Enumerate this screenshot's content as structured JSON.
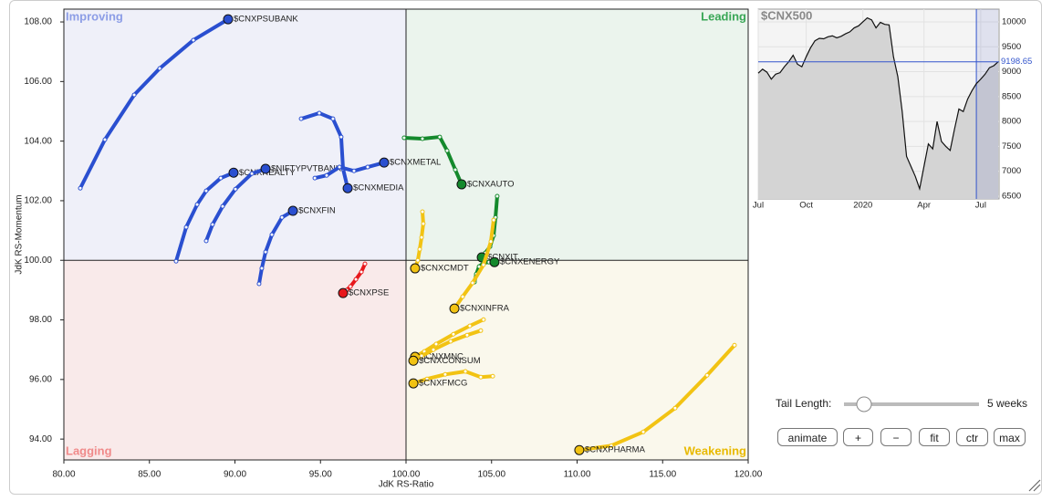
{
  "chart_data": [
    {
      "type": "scatter",
      "x_label": "JdK RS-Ratio",
      "y_label": "JdK RS-Momentum",
      "center": 100,
      "xlim": [
        80,
        120
      ],
      "ylim": [
        93.3,
        108.43
      ],
      "xticks": [
        {
          "value": 80,
          "label": "80.00"
        },
        {
          "value": 85,
          "label": "85.00"
        },
        {
          "value": 90,
          "label": "90.00"
        },
        {
          "value": 95,
          "label": "95.00"
        },
        {
          "value": 100,
          "label": "100.00"
        },
        {
          "value": 105,
          "label": "105.00"
        },
        {
          "value": 110,
          "label": "110.00"
        },
        {
          "value": 115,
          "label": "115.00"
        },
        {
          "value": 120,
          "label": "120.00"
        }
      ],
      "yticks": [
        {
          "value": 94,
          "label": "94.00"
        },
        {
          "value": 96,
          "label": "96.00"
        },
        {
          "value": 98,
          "label": "98.00"
        },
        {
          "value": 100,
          "label": "100.00"
        },
        {
          "value": 102,
          "label": "102.00"
        },
        {
          "value": 104,
          "label": "104.00"
        },
        {
          "value": 106,
          "label": "106.00"
        },
        {
          "value": 108,
          "label": "108.00"
        }
      ],
      "quadrants": [
        {
          "label": "Improving",
          "corner": "top-left",
          "color": "#8c9de6",
          "background": "#eff0f9"
        },
        {
          "label": "Leading",
          "corner": "top-right",
          "color": "#3aa757",
          "background": "#ebf4ed"
        },
        {
          "label": "Lagging",
          "corner": "bottom-left",
          "color": "#f08a8a",
          "background": "#f9eaea"
        },
        {
          "label": "Weakening",
          "corner": "bottom-right",
          "color": "#e8b900",
          "background": "#faf8ec"
        }
      ],
      "series": [
        {
          "name": "$CNXPSUBANK",
          "color": "#2a4fd0",
          "x": [
            80.96,
            82.4,
            84.11,
            85.6,
            87.57,
            89.6
          ],
          "y": [
            102.42,
            104.05,
            105.55,
            106.44,
            107.39,
            108.09
          ]
        },
        {
          "name": "$CNXREALTY",
          "color": "#2a4fd0",
          "x": [
            86.56,
            87.15,
            87.79,
            88.32,
            89.17,
            89.92
          ],
          "y": [
            99.97,
            101.11,
            101.87,
            102.33,
            102.76,
            102.94
          ]
        },
        {
          "name": "$NIFTYPVTBANK",
          "color": "#2a4fd0",
          "x": [
            88.32,
            88.69,
            89.28,
            90.03,
            90.99,
            91.79
          ],
          "y": [
            100.65,
            101.2,
            101.81,
            102.39,
            102.91,
            103.07
          ]
        },
        {
          "name": "$CNXFIN",
          "color": "#2a4fd0",
          "x": [
            91.41,
            91.57,
            91.79,
            92.16,
            92.75,
            93.39
          ],
          "y": [
            99.21,
            99.73,
            100.28,
            100.86,
            101.44,
            101.66
          ]
        },
        {
          "name": "$CNXMEDIA",
          "color": "#2a4fd0",
          "x": [
            93.87,
            94.93,
            95.73,
            96.21,
            96.32,
            96.59
          ],
          "y": [
            104.75,
            104.94,
            104.75,
            104.14,
            103.07,
            102.42
          ]
        },
        {
          "name": "$CNXMETAL",
          "color": "#2a4fd0",
          "x": [
            94.67,
            95.36,
            96.11,
            96.96,
            97.76,
            98.72
          ],
          "y": [
            102.76,
            102.85,
            103.13,
            103.0,
            103.13,
            103.28
          ]
        },
        {
          "name": "$CNXAUTO",
          "color": "#14892c",
          "x": [
            99.89,
            100.96,
            101.97,
            102.4,
            102.88,
            103.25
          ],
          "y": [
            104.11,
            104.08,
            104.14,
            103.68,
            103.04,
            102.55
          ]
        },
        {
          "name": "$CNXIT",
          "color": "#14892c",
          "x": [
            105.33,
            105.23,
            105.12,
            104.91,
            104.64,
            104.43
          ],
          "y": [
            102.15,
            101.44,
            100.83,
            100.46,
            100.25,
            100.1
          ]
        },
        {
          "name": "$CNXENERGY",
          "color": "#14892c",
          "x": [
            104.0,
            104.11,
            104.27,
            104.53,
            104.85,
            105.17
          ],
          "y": [
            99.27,
            99.54,
            99.79,
            99.91,
            99.94,
            99.94
          ]
        },
        {
          "name": "$CNXCMDT",
          "color": "#f2c313",
          "x": [
            100.96,
            101.01,
            100.91,
            100.8,
            100.69,
            100.53
          ],
          "y": [
            101.63,
            101.23,
            100.77,
            100.37,
            100.0,
            99.73
          ]
        },
        {
          "name": "$CNXINFRA",
          "color": "#f2c313",
          "x": [
            105.12,
            104.96,
            104.53,
            103.89,
            103.31,
            102.83
          ],
          "y": [
            101.35,
            100.63,
            99.85,
            99.24,
            98.78,
            98.38
          ]
        },
        {
          "name": "$CNXMNC",
          "color": "#f2c313",
          "x": [
            104.53,
            103.73,
            102.77,
            101.76,
            101.07,
            100.53
          ],
          "y": [
            98.01,
            97.8,
            97.52,
            97.19,
            96.94,
            96.76
          ]
        },
        {
          "name": "$CNXCONSUM",
          "color": "#f2c313",
          "x": [
            104.37,
            103.57,
            102.61,
            101.6,
            100.91,
            100.43
          ],
          "y": [
            97.64,
            97.49,
            97.28,
            97.0,
            96.79,
            96.63
          ]
        },
        {
          "name": "$CNXFMCG",
          "color": "#f2c313",
          "x": [
            105.07,
            104.37,
            103.47,
            102.29,
            101.23,
            100.43
          ],
          "y": [
            96.11,
            96.08,
            96.27,
            96.17,
            96.02,
            95.87
          ]
        },
        {
          "name": "$CNXPHARMA",
          "color": "#f2c313",
          "x": [
            119.2,
            117.6,
            115.73,
            113.87,
            112.0,
            110.13
          ],
          "y": [
            97.15,
            96.14,
            95.04,
            94.24,
            93.78,
            93.63
          ]
        },
        {
          "name": "$CNXPSE",
          "color": "#e8181c",
          "x": [
            97.6,
            97.39,
            97.07,
            96.75,
            96.53,
            96.32
          ],
          "y": [
            99.88,
            99.61,
            99.36,
            99.12,
            99.0,
            98.9
          ]
        }
      ]
    },
    {
      "type": "line",
      "title": "$CNX500",
      "color": "#111111",
      "fill": "#d4d4d4",
      "grid": true,
      "ylim": [
        6445,
        10256
      ],
      "yticks": [
        6500,
        7000,
        7500,
        8000,
        8500,
        9000,
        9500,
        10000
      ],
      "categories": [
        "Jul",
        null,
        null,
        null,
        null,
        null,
        null,
        null,
        null,
        null,
        null,
        "Oct",
        null,
        null,
        null,
        null,
        null,
        null,
        null,
        null,
        null,
        null,
        null,
        null,
        "2020",
        null,
        null,
        null,
        null,
        null,
        null,
        null,
        null,
        null,
        null,
        null,
        null,
        null,
        "Apr",
        null,
        null,
        null,
        null,
        null,
        null,
        null,
        null,
        null,
        null,
        null,
        null,
        "Jul",
        null,
        null,
        null,
        null
      ],
      "values": [
        8970,
        9050,
        8990,
        8850,
        8950,
        8980,
        9100,
        9200,
        9330,
        9150,
        9100,
        9300,
        9480,
        9620,
        9670,
        9660,
        9700,
        9720,
        9680,
        9710,
        9760,
        9800,
        9880,
        9920,
        10000,
        10080,
        10040,
        9880,
        9990,
        9950,
        9940,
        9300,
        8900,
        8200,
        7300,
        7100,
        6900,
        6650,
        7100,
        7550,
        7450,
        8000,
        7600,
        7500,
        7420,
        7850,
        8250,
        8200,
        8450,
        8620,
        8760,
        8850,
        8950,
        9080,
        9120,
        9198.65
      ]
    }
  ],
  "controls": {
    "tail_length_label": "Tail Length:",
    "tail_length_value": "5 weeks",
    "buttons": [
      "animate",
      "+",
      "−",
      "fit",
      "ctr",
      "max"
    ]
  }
}
